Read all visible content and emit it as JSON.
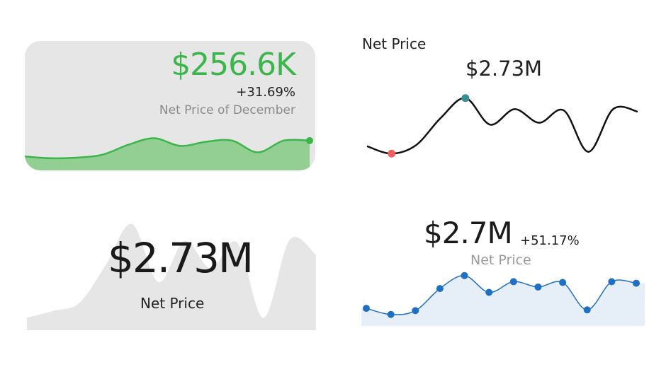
{
  "cards": {
    "card1": {
      "value": "$256.6K",
      "change": "+31.69%",
      "label": "Net Price of December"
    },
    "card2": {
      "title": "Net Price",
      "value": "$2.73M"
    },
    "card3": {
      "value": "$2.73M",
      "label": "Net Price"
    },
    "card4": {
      "value": "$2.7M",
      "change": "+51.17%",
      "label": "Net Price"
    }
  },
  "colors": {
    "green_line": "#3cb54a",
    "green_fill": "#93cf93",
    "card_bg": "#e6e6e6",
    "black_line": "#111111",
    "max_marker": "#3a8f95",
    "min_marker": "#f06060",
    "gray_area": "#e6e6e6",
    "blue_line": "#1f6fc2",
    "blue_fill": "#e6eef8"
  },
  "chart_data": [
    {
      "type": "area",
      "x": [
        1,
        2,
        3,
        4,
        5,
        6,
        7,
        8,
        9,
        10,
        11,
        12
      ],
      "values": [
        8,
        5,
        6,
        11,
        28,
        39,
        26,
        33,
        35,
        15,
        35,
        35
      ],
      "ylim": [
        0,
        60
      ],
      "highlight": "last"
    },
    {
      "type": "line",
      "x": [
        1,
        2,
        3,
        4,
        5,
        6,
        7,
        8,
        9,
        10,
        11,
        12
      ],
      "values": [
        22,
        10,
        24,
        68,
        100,
        57,
        82,
        60,
        80,
        13,
        82,
        78
      ],
      "ylim": [
        0,
        110
      ],
      "markers": [
        "min",
        "max"
      ]
    },
    {
      "type": "area",
      "x": [
        1,
        2,
        3,
        4,
        5,
        6,
        7,
        8,
        9,
        10,
        11,
        12
      ],
      "values": [
        18,
        28,
        40,
        95,
        155,
        70,
        130,
        90,
        128,
        18,
        132,
        110
      ],
      "ylim": [
        0,
        165
      ]
    },
    {
      "type": "line",
      "x": [
        1,
        2,
        3,
        4,
        5,
        6,
        7,
        8,
        9,
        10,
        11,
        12
      ],
      "values": [
        24,
        16,
        21,
        50,
        67,
        45,
        59,
        52,
        58,
        22,
        59,
        57
      ],
      "ylim": [
        0,
        90
      ],
      "markers": "all",
      "fill": true
    }
  ]
}
